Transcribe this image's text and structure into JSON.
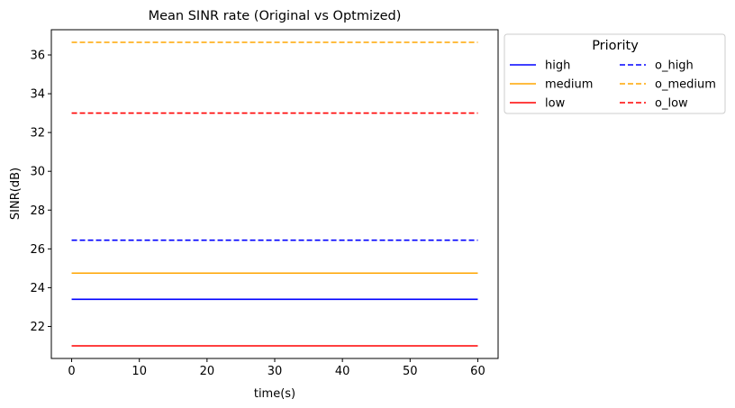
{
  "chart_data": {
    "type": "line",
    "title": "Mean SINR rate (Original vs Optmized)",
    "xlabel": "time(s)",
    "ylabel": "SINR(dB)",
    "xlim": [
      -3,
      63
    ],
    "ylim": [
      20.35,
      37.3
    ],
    "xticks": [
      0,
      10,
      20,
      30,
      40,
      50,
      60
    ],
    "yticks": [
      22,
      24,
      26,
      28,
      30,
      32,
      34,
      36
    ],
    "grid": false,
    "legend": {
      "title": "Priority",
      "placement": "outside-top-right",
      "columns": 2
    },
    "series": [
      {
        "name": "high",
        "color": "#0000ff",
        "style": "solid",
        "x": [
          0,
          60
        ],
        "y": [
          23.4,
          23.4
        ]
      },
      {
        "name": "medium",
        "color": "#ffa500",
        "style": "solid",
        "x": [
          0,
          60
        ],
        "y": [
          24.75,
          24.75
        ]
      },
      {
        "name": "low",
        "color": "#ff0000",
        "style": "solid",
        "x": [
          0,
          60
        ],
        "y": [
          21.0,
          21.0
        ]
      },
      {
        "name": "o_high",
        "color": "#0000ff",
        "style": "dashed",
        "x": [
          0,
          60
        ],
        "y": [
          26.45,
          26.45
        ]
      },
      {
        "name": "o_medium",
        "color": "#ffa500",
        "style": "dashed",
        "x": [
          0,
          60
        ],
        "y": [
          36.65,
          36.65
        ]
      },
      {
        "name": "o_low",
        "color": "#ff0000",
        "style": "dashed",
        "x": [
          0,
          60
        ],
        "y": [
          33.0,
          33.0
        ]
      }
    ]
  }
}
